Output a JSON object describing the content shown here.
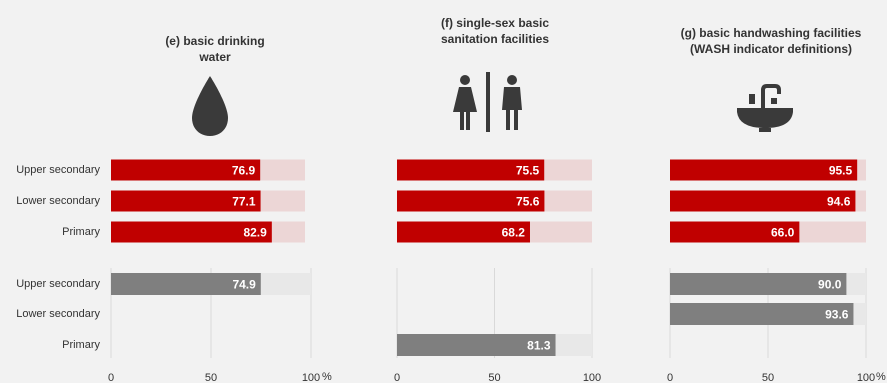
{
  "row_labels": [
    "Upper secondary",
    "Lower secondary",
    "Primary"
  ],
  "colors": {
    "top_bar": "#c00000",
    "top_track": "#ecd6d6",
    "bottom_bar": "#7f7f7f",
    "bottom_track": "#e8e8e8"
  },
  "chart_data": [
    {
      "type": "bar",
      "title": [
        "(e) basic drinking",
        "water"
      ],
      "icon": "water-drop-icon",
      "categories": [
        "Upper secondary",
        "Lower secondary",
        "Primary"
      ],
      "series_top": [
        76.9,
        77.1,
        82.9
      ],
      "series_bottom": [
        74.9,
        null,
        null
      ],
      "xlim": [
        0,
        100
      ],
      "x_ticks": [
        "0",
        "50",
        "100"
      ],
      "x_unit": "%"
    },
    {
      "type": "bar",
      "title": [
        "(f) single-sex basic",
        "sanitation facilities"
      ],
      "icon": "toilet-sign-icon",
      "categories": [
        "Upper secondary",
        "Lower secondary",
        "Primary"
      ],
      "series_top": [
        75.5,
        75.6,
        68.2
      ],
      "series_bottom": [
        null,
        null,
        81.3
      ],
      "xlim": [
        0,
        100
      ],
      "x_ticks": [
        "0",
        "50",
        "100"
      ],
      "x_unit": "%"
    },
    {
      "type": "bar",
      "title": [
        "(g) basic handwashing facilities",
        "(WASH indicator definitions)"
      ],
      "icon": "sink-icon",
      "categories": [
        "Upper secondary",
        "Lower secondary",
        "Primary"
      ],
      "series_top": [
        95.5,
        94.6,
        66.0
      ],
      "series_bottom": [
        90.0,
        93.6,
        null
      ],
      "xlim": [
        0,
        100
      ],
      "x_ticks": [
        "0",
        "50",
        "100"
      ],
      "x_unit": "%"
    }
  ]
}
